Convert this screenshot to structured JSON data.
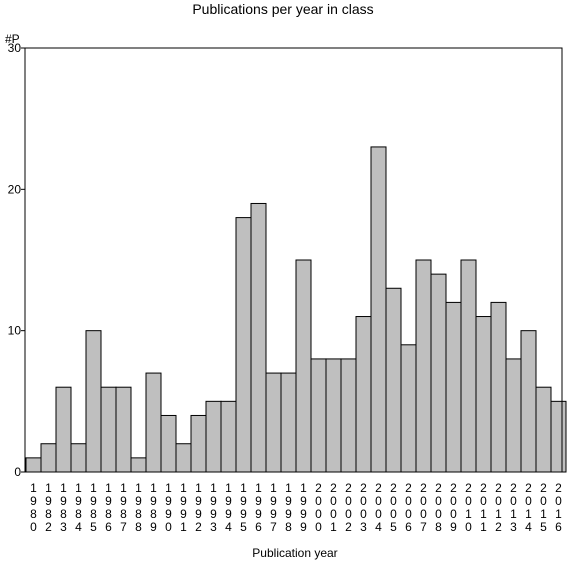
{
  "chart_data": {
    "type": "bar",
    "title": "Publications per year in class",
    "ylabel": "#P",
    "xlabel": "Publication year",
    "ylim": [
      0,
      30
    ],
    "yticks": [
      0,
      10,
      20,
      30
    ],
    "grid": false,
    "bar_color": "#bfbfbf",
    "categories": [
      "1980",
      "1982",
      "1983",
      "1984",
      "1985",
      "1986",
      "1987",
      "1988",
      "1989",
      "1990",
      "1991",
      "1992",
      "1993",
      "1994",
      "1995",
      "1996",
      "1997",
      "1998",
      "1999",
      "2000",
      "2001",
      "2002",
      "2003",
      "2004",
      "2005",
      "2006",
      "2007",
      "2008",
      "2009",
      "2010",
      "2011",
      "2012",
      "2013",
      "2014",
      "2015",
      "2016"
    ],
    "values": [
      1,
      2,
      6,
      2,
      10,
      6,
      6,
      1,
      7,
      4,
      2,
      4,
      5,
      5,
      18,
      19,
      7,
      7,
      15,
      8,
      8,
      8,
      11,
      23,
      13,
      9,
      15,
      14,
      12,
      15,
      11,
      12,
      8,
      10,
      6,
      5
    ]
  }
}
